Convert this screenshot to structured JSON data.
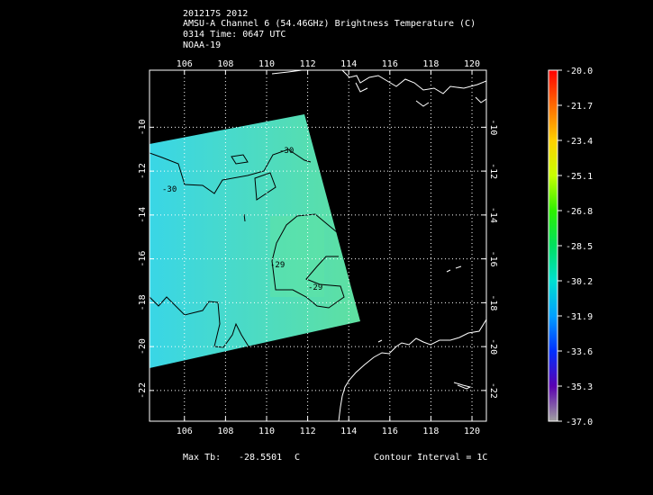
{
  "header": {
    "line1": "201217S 2012",
    "line2": "AMSU-A Channel 6 (54.46GHz) Brightness Temperature (C)",
    "line3": "0314 Time: 0647 UTC",
    "line4": "NOAA-19"
  },
  "footer": {
    "max_tb_label": "Max Tb:",
    "max_tb_value": "-28.5501",
    "max_tb_unit": "C",
    "contour_interval": "Contour Interval = 1C"
  },
  "map": {
    "lon_ticks": [
      "106",
      "108",
      "110",
      "112",
      "114",
      "116",
      "118",
      "120"
    ],
    "lat_ticks": [
      "-10",
      "-12",
      "-14",
      "-16",
      "-18",
      "-20",
      "-22"
    ],
    "lon_range": [
      104.3,
      120.7
    ],
    "lat_range": [
      -7.4,
      -23.4
    ],
    "contour_labels": [
      "-30",
      "-30",
      "-29",
      "-29"
    ],
    "swath_color_low": "#39d6e6",
    "swath_color_high": "#5fe0a0",
    "coastline_color": "#ffffff",
    "grid_color": "#ffffff"
  },
  "colorbar": {
    "ticks": [
      "-20.0",
      "-21.7",
      "-23.4",
      "-25.1",
      "-26.8",
      "-28.5",
      "-30.2",
      "-31.9",
      "-33.6",
      "-35.3",
      "-37.0"
    ],
    "colors": [
      "#ff0000",
      "#ff6a00",
      "#ffd000",
      "#c8ff00",
      "#2ef000",
      "#00e060",
      "#00e0d0",
      "#00a0ff",
      "#0030ff",
      "#5a00b0",
      "#a0a0a0"
    ]
  }
}
